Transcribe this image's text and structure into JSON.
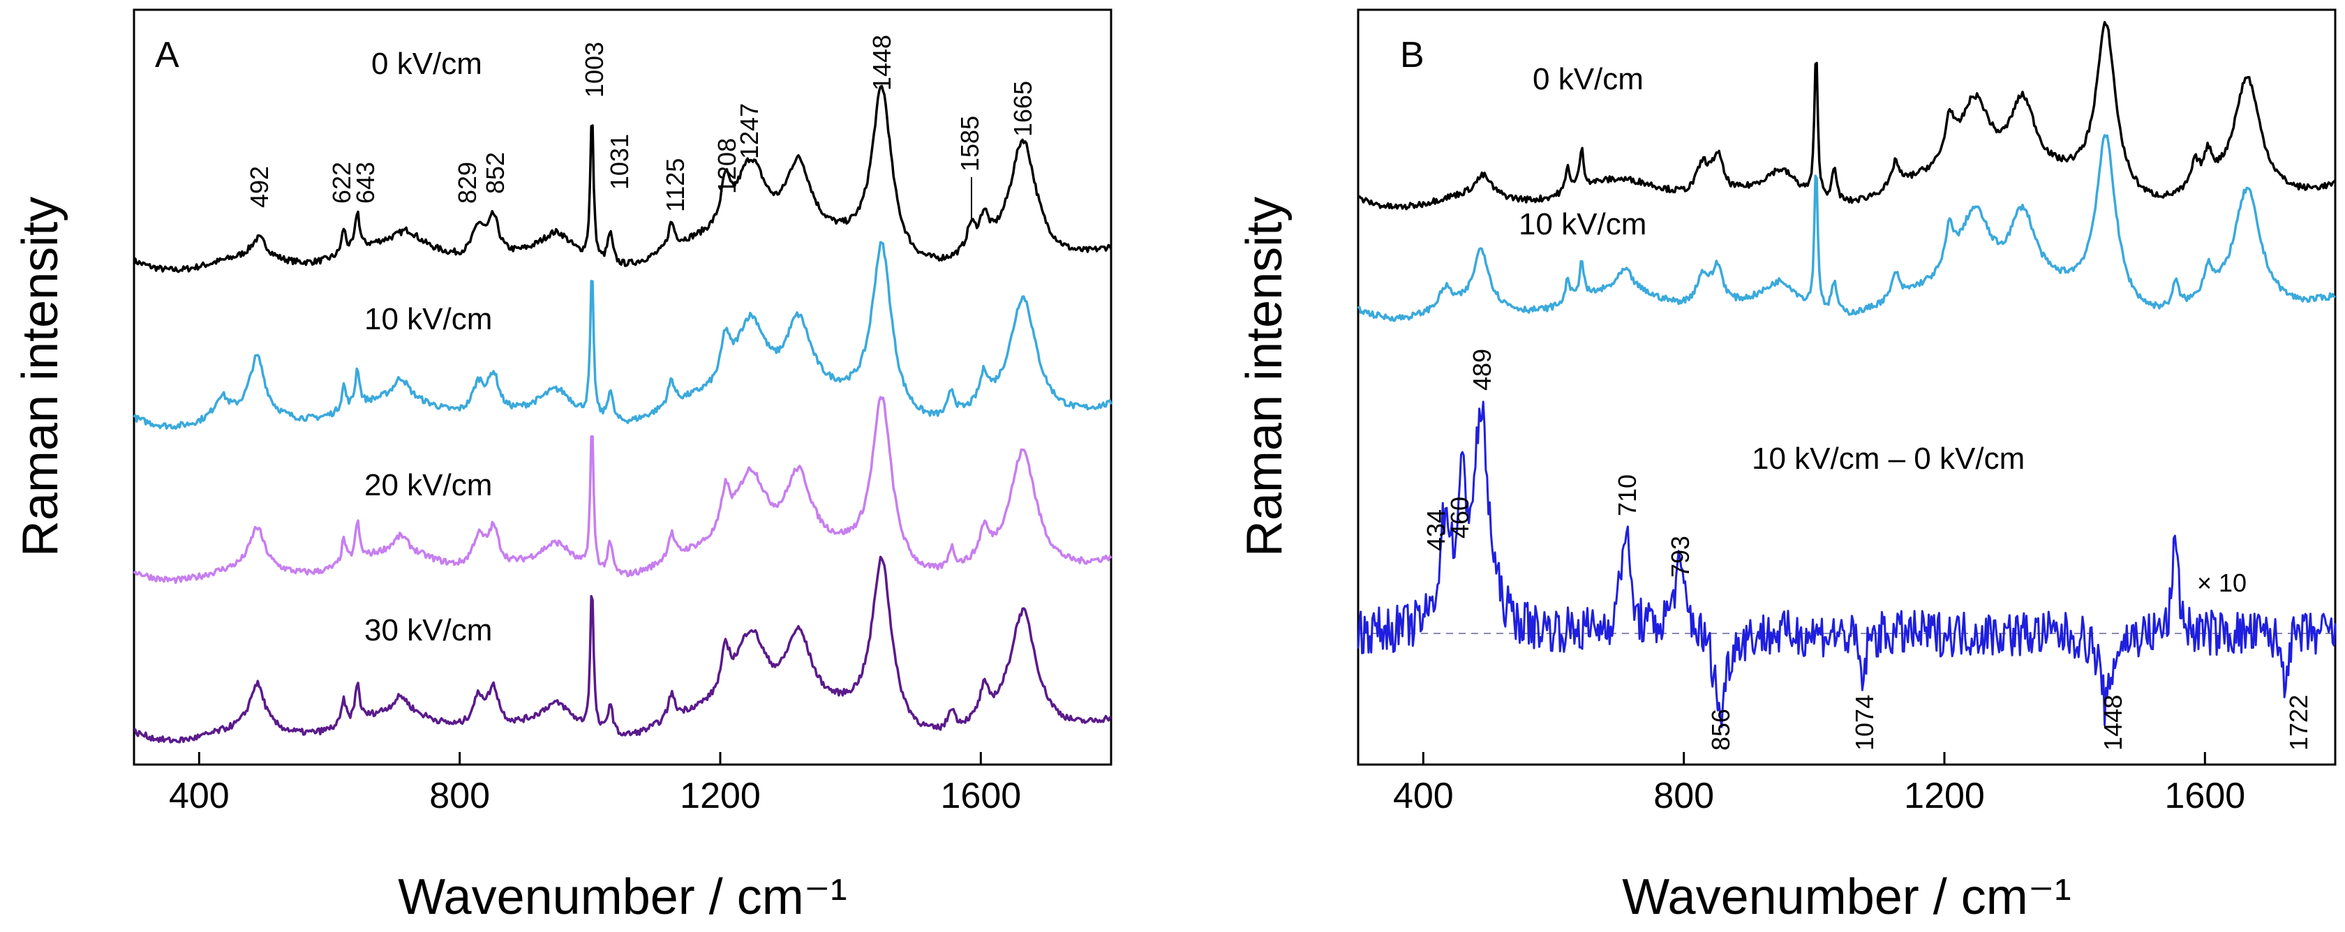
{
  "chart_data": [
    {
      "type": "line",
      "panel": "A",
      "xlabel": "Wavenumber / cm⁻¹",
      "ylabel": "Raman intensity",
      "xlim": [
        300,
        1800
      ],
      "xticks": [
        400,
        800,
        1200,
        1600
      ],
      "xticklabels": [
        "400",
        "800",
        "1200",
        "1600"
      ],
      "series": [
        {
          "name": "0 kV/cm",
          "color": "#000000",
          "offset": 3,
          "scale": 1.0,
          "bands": [
            [
              1003,
              0.7,
              3
            ],
            [
              1448,
              0.8,
              18
            ],
            [
              1665,
              0.55,
              24
            ],
            [
              1247,
              0.4,
              30
            ],
            [
              1320,
              0.38,
              25
            ],
            [
              1031,
              0.15,
              5
            ],
            [
              1208,
              0.2,
              8
            ],
            [
              1125,
              0.12,
              6
            ],
            [
              1585,
              0.12,
              8
            ],
            [
              1605,
              0.14,
              8
            ],
            [
              829,
              0.15,
              12
            ],
            [
              852,
              0.18,
              10
            ],
            [
              643,
              0.18,
              4
            ],
            [
              622,
              0.12,
              4
            ],
            [
              492,
              0.1,
              15
            ],
            [
              950,
              0.12,
              30
            ],
            [
              720,
              0.06,
              20
            ]
          ]
        },
        {
          "name": "10 kV/cm",
          "color": "#3aa9dc",
          "offset": 2,
          "scale": 1.0,
          "bands": [
            [
              1003,
              0.7,
              3
            ],
            [
              1448,
              0.8,
              18
            ],
            [
              1665,
              0.55,
              24
            ],
            [
              1247,
              0.4,
              30
            ],
            [
              1320,
              0.38,
              25
            ],
            [
              1031,
              0.15,
              5
            ],
            [
              1208,
              0.2,
              8
            ],
            [
              1125,
              0.12,
              6
            ],
            [
              1555,
              0.12,
              6
            ],
            [
              1605,
              0.14,
              8
            ],
            [
              829,
              0.15,
              12
            ],
            [
              852,
              0.18,
              10
            ],
            [
              643,
              0.18,
              4
            ],
            [
              622,
              0.12,
              4
            ],
            [
              489,
              0.28,
              14
            ],
            [
              434,
              0.1,
              12
            ],
            [
              710,
              0.1,
              14
            ],
            [
              950,
              0.12,
              30
            ]
          ]
        },
        {
          "name": "20 kV/cm",
          "color": "#c77ef0",
          "offset": 1,
          "scale": 1.0,
          "bands": [
            [
              1003,
              0.7,
              3
            ],
            [
              1448,
              0.8,
              18
            ],
            [
              1665,
              0.55,
              24
            ],
            [
              1247,
              0.4,
              30
            ],
            [
              1320,
              0.38,
              25
            ],
            [
              1031,
              0.15,
              5
            ],
            [
              1208,
              0.2,
              8
            ],
            [
              1125,
              0.12,
              6
            ],
            [
              1555,
              0.1,
              6
            ],
            [
              1605,
              0.14,
              8
            ],
            [
              829,
              0.15,
              12
            ],
            [
              852,
              0.18,
              10
            ],
            [
              643,
              0.18,
              4
            ],
            [
              622,
              0.12,
              4
            ],
            [
              489,
              0.2,
              14
            ],
            [
              710,
              0.08,
              14
            ],
            [
              950,
              0.12,
              30
            ]
          ]
        },
        {
          "name": "30 kV/cm",
          "color": "#5a1a8c",
          "offset": 0,
          "scale": 1.0,
          "bands": [
            [
              1003,
              0.7,
              3
            ],
            [
              1448,
              0.8,
              18
            ],
            [
              1665,
              0.55,
              24
            ],
            [
              1247,
              0.4,
              30
            ],
            [
              1320,
              0.38,
              25
            ],
            [
              1031,
              0.15,
              5
            ],
            [
              1208,
              0.2,
              8
            ],
            [
              1125,
              0.12,
              6
            ],
            [
              1555,
              0.1,
              6
            ],
            [
              1605,
              0.14,
              8
            ],
            [
              829,
              0.15,
              12
            ],
            [
              852,
              0.18,
              10
            ],
            [
              643,
              0.18,
              4
            ],
            [
              622,
              0.12,
              4
            ],
            [
              489,
              0.22,
              14
            ],
            [
              710,
              0.08,
              14
            ],
            [
              950,
              0.12,
              30
            ]
          ]
        }
      ],
      "annotations": [
        "492",
        "622",
        "643",
        "829",
        "852",
        "1003",
        "1031",
        "1125",
        "1208",
        "1247",
        "1448",
        "1585",
        "1665"
      ]
    },
    {
      "type": "line",
      "panel": "B",
      "xlabel": "Wavenumber / cm⁻¹",
      "ylabel": "Raman intensity",
      "xlim": [
        300,
        1800
      ],
      "xticks": [
        400,
        800,
        1200,
        1600
      ],
      "xticklabels": [
        "400",
        "800",
        "1200",
        "1600"
      ],
      "series": [
        {
          "name": "0 kV/cm",
          "color": "#000000",
          "bands": [
            [
              1003,
              0.7,
              3
            ],
            [
              1448,
              0.8,
              18
            ],
            [
              1665,
              0.55,
              24
            ],
            [
              1247,
              0.4,
              30
            ],
            [
              1320,
              0.38,
              25
            ],
            [
              1031,
              0.15,
              5
            ],
            [
              1208,
              0.2,
              8
            ],
            [
              1125,
              0.12,
              6
            ],
            [
              1585,
              0.12,
              8
            ],
            [
              1605,
              0.14,
              8
            ],
            [
              829,
              0.15,
              12
            ],
            [
              852,
              0.18,
              10
            ],
            [
              643,
              0.18,
              4
            ],
            [
              622,
              0.12,
              4
            ],
            [
              492,
              0.1,
              15
            ],
            [
              950,
              0.12,
              30
            ]
          ]
        },
        {
          "name": "10 kV/cm",
          "color": "#3aa9dc",
          "bands": [
            [
              1003,
              0.7,
              3
            ],
            [
              1448,
              0.8,
              18
            ],
            [
              1665,
              0.55,
              24
            ],
            [
              1247,
              0.4,
              30
            ],
            [
              1320,
              0.38,
              25
            ],
            [
              1031,
              0.15,
              5
            ],
            [
              1208,
              0.2,
              8
            ],
            [
              1125,
              0.12,
              6
            ],
            [
              1555,
              0.12,
              6
            ],
            [
              1605,
              0.14,
              8
            ],
            [
              829,
              0.15,
              12
            ],
            [
              852,
              0.18,
              10
            ],
            [
              643,
              0.18,
              4
            ],
            [
              622,
              0.12,
              4
            ],
            [
              489,
              0.28,
              14
            ],
            [
              434,
              0.1,
              12
            ],
            [
              710,
              0.1,
              14
            ],
            [
              950,
              0.12,
              30
            ]
          ]
        },
        {
          "name": "10 kV/cm – 0 kV/cm",
          "color": "#1f1fe0",
          "difference": true,
          "bands": [
            [
              489,
              1.0,
              14
            ],
            [
              460,
              0.55,
              8
            ],
            [
              434,
              0.5,
              10
            ],
            [
              710,
              0.5,
              8
            ],
            [
              793,
              0.3,
              12
            ],
            [
              856,
              -0.4,
              10
            ],
            [
              1074,
              -0.25,
              5
            ],
            [
              1448,
              -0.35,
              10
            ],
            [
              1555,
              0.5,
              5
            ],
            [
              1722,
              -0.2,
              6
            ]
          ]
        }
      ],
      "multiplier_label": "× 10",
      "annotations": [
        "434",
        "460",
        "489",
        "710",
        "793",
        "856",
        "1074",
        "1448",
        "1722"
      ]
    }
  ]
}
